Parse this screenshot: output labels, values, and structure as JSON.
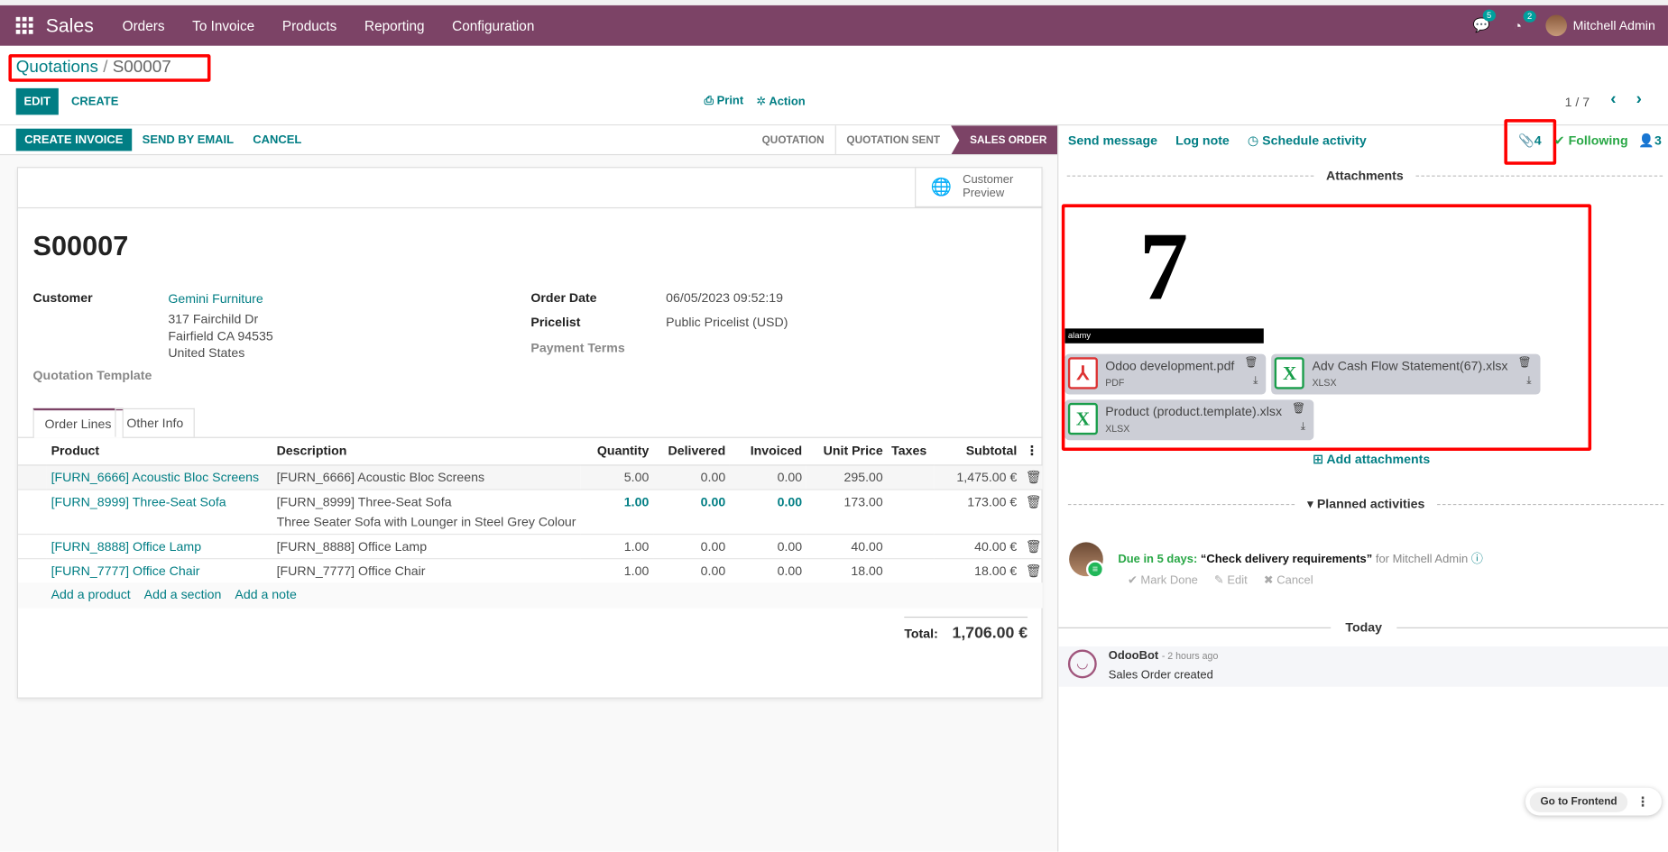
{
  "navbar": {
    "app": "Sales",
    "menus": [
      "Orders",
      "To Invoice",
      "Products",
      "Reporting",
      "Configuration"
    ],
    "messages_count": "5",
    "activities_count": "2",
    "user": "Mitchell Admin",
    "color": "#7c4366"
  },
  "breadcrumb": {
    "parent": "Quotations",
    "separator": "/",
    "current": "S00007"
  },
  "control": {
    "edit": "EDIT",
    "create": "CREATE",
    "print": "Print",
    "action": "Action",
    "pager": "1 / 7"
  },
  "statusbar": {
    "buttons": [
      "CREATE INVOICE",
      "SEND BY EMAIL",
      "CANCEL"
    ],
    "stages": [
      "QUOTATION",
      "QUOTATION SENT",
      "SALES ORDER"
    ],
    "active_stage": "SALES ORDER"
  },
  "form": {
    "customer_preview": "Customer Preview",
    "name": "S00007",
    "customer_label": "Customer",
    "customer": "Gemini Furniture",
    "address": [
      "317 Fairchild Dr",
      "Fairfield CA 94535",
      "United States"
    ],
    "template_label": "Quotation Template",
    "order_date_label": "Order Date",
    "order_date": "06/05/2023 09:52:19",
    "pricelist_label": "Pricelist",
    "pricelist": "Public Pricelist (USD)",
    "payment_terms_label": "Payment Terms",
    "tabs": [
      "Order Lines",
      "Other Info"
    ],
    "active_tab": "Order Lines",
    "columns": [
      "Product",
      "Description",
      "Quantity",
      "Delivered",
      "Invoiced",
      "Unit Price",
      "Taxes",
      "Subtotal"
    ],
    "lines": [
      {
        "product": "[FURN_6666] Acoustic Bloc Screens",
        "description": "[FURN_6666] Acoustic Bloc Screens",
        "note": "",
        "qty": "5.00",
        "delivered": "0.00",
        "invoiced": "0.00",
        "price": "295.00",
        "taxes": "",
        "subtotal": "1,475.00 €"
      },
      {
        "product": "[FURN_8999] Three-Seat Sofa",
        "description": "[FURN_8999] Three-Seat Sofa",
        "note": "Three Seater Sofa with Lounger in Steel Grey Colour",
        "qty": "1.00",
        "delivered": "0.00",
        "invoiced": "0.00",
        "price": "173.00",
        "taxes": "",
        "subtotal": "173.00 €",
        "highlight": true
      },
      {
        "product": "[FURN_8888] Office Lamp",
        "description": "[FURN_8888] Office Lamp",
        "note": "",
        "qty": "1.00",
        "delivered": "0.00",
        "invoiced": "0.00",
        "price": "40.00",
        "taxes": "",
        "subtotal": "40.00 €"
      },
      {
        "product": "[FURN_7777] Office Chair",
        "description": "[FURN_7777] Office Chair",
        "note": "",
        "qty": "1.00",
        "delivered": "0.00",
        "invoiced": "0.00",
        "price": "18.00",
        "taxes": "",
        "subtotal": "18.00 €"
      }
    ],
    "add_links": [
      "Add a product",
      "Add a section",
      "Add a note"
    ],
    "total_label": "Total:",
    "total": "1,706.00 €"
  },
  "chatter": {
    "send_message": "Send message",
    "log_note": "Log note",
    "schedule_activity": "Schedule activity",
    "attachments_count": "4",
    "following": "Following",
    "followers": "3",
    "attachments_title": "Attachments",
    "image_attachment": {
      "digit": "7",
      "watermark": "alamy"
    },
    "files": [
      {
        "name": "Odoo development.pdf",
        "type": "PDF",
        "icon": "pdf-icon"
      },
      {
        "name": "Adv Cash Flow Statement(67).xlsx",
        "type": "XLSX",
        "icon": "xlsx-icon"
      },
      {
        "name": "Product (product.template).xlsx",
        "type": "XLSX",
        "icon": "xlsx-icon"
      }
    ],
    "add_attachments": "Add attachments",
    "planned_title": "Planned activities",
    "activity": {
      "due": "Due in 5 days:",
      "summary": "“Check delivery requirements”",
      "for": "for Mitchell Admin",
      "mark_done": "Mark Done",
      "edit": "Edit",
      "cancel": "Cancel"
    },
    "today": "Today",
    "message": {
      "author": "OdooBot",
      "time": "- 2 hours ago",
      "body": "Sales Order created"
    }
  },
  "go_frontend": "Go to Frontend"
}
